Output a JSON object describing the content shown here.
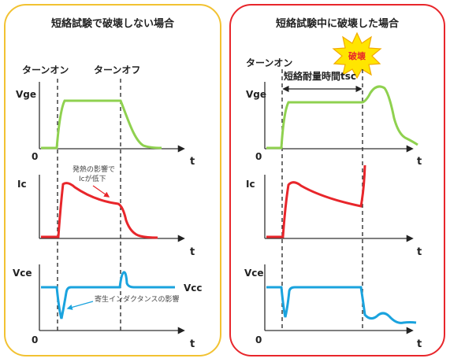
{
  "colors": {
    "left_border": "#f2c232",
    "right_border": "#e8262b",
    "vge": "#8fd14f",
    "ic": "#e8262b",
    "vce": "#1aa3de",
    "axis": "#333333",
    "burst_fill": "#ffe500",
    "burst_stroke": "#f2a900"
  },
  "left": {
    "title": "短絡試験で破壊しない場合",
    "turn_on": "ターンオン",
    "turn_off": "ターンオフ",
    "heat_note_line1": "発熱の影響で",
    "heat_note_line2": "Icが低下",
    "parasitic_note": "寄生インダクタンスの影響",
    "vcc": "Vcc"
  },
  "right": {
    "title": "短絡試験中に破壊した場合",
    "turn_on": "ターンオン",
    "withstand_label": "短絡耐量時間tsc",
    "breakdown": "破壊"
  },
  "axes": {
    "vge": "Vge",
    "ic": "Ic",
    "vce": "Vce",
    "origin": "0",
    "time": "t"
  }
}
